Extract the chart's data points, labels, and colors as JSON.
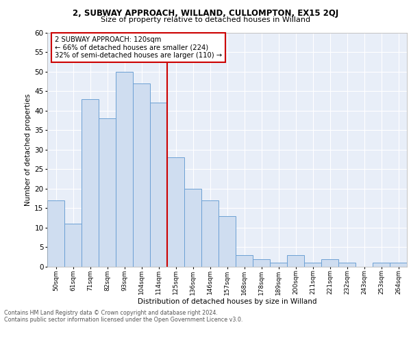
{
  "title1": "2, SUBWAY APPROACH, WILLAND, CULLOMPTON, EX15 2QJ",
  "title2": "Size of property relative to detached houses in Willand",
  "xlabel": "Distribution of detached houses by size in Willand",
  "ylabel": "Number of detached properties",
  "categories": [
    "50sqm",
    "61sqm",
    "71sqm",
    "82sqm",
    "93sqm",
    "104sqm",
    "114sqm",
    "125sqm",
    "136sqm",
    "146sqm",
    "157sqm",
    "168sqm",
    "178sqm",
    "189sqm",
    "200sqm",
    "211sqm",
    "221sqm",
    "232sqm",
    "243sqm",
    "253sqm",
    "264sqm"
  ],
  "values": [
    17,
    11,
    43,
    38,
    50,
    47,
    42,
    28,
    20,
    17,
    13,
    3,
    2,
    1,
    3,
    1,
    2,
    1,
    0,
    1,
    1
  ],
  "bar_face_color": "#cfddf0",
  "bar_edge_color": "#6ca0d4",
  "vline_color": "#cc0000",
  "annotation_title": "2 SUBWAY APPROACH: 120sqm",
  "annotation_line1": "← 66% of detached houses are smaller (224)",
  "annotation_line2": "32% of semi-detached houses are larger (110) →",
  "annotation_box_edge_color": "#cc0000",
  "ylim": [
    0,
    60
  ],
  "yticks": [
    0,
    5,
    10,
    15,
    20,
    25,
    30,
    35,
    40,
    45,
    50,
    55,
    60
  ],
  "footer1": "Contains HM Land Registry data © Crown copyright and database right 2024.",
  "footer2": "Contains public sector information licensed under the Open Government Licence v3.0.",
  "background_color": "#e8eef8",
  "grid_color": "#ffffff"
}
